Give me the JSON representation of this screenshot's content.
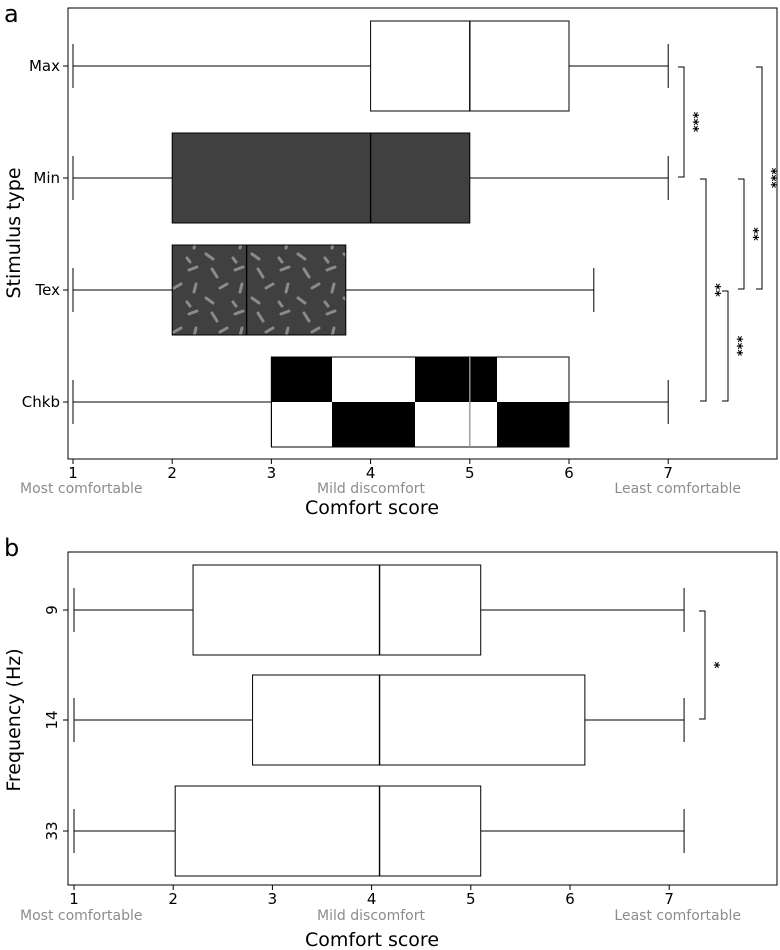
{
  "panel_a": {
    "letter": "a",
    "xlabel": "Comfort score",
    "ylabel": "Stimulus type",
    "x_ticks": [
      "1",
      "2",
      "3",
      "4",
      "5",
      "6",
      "7"
    ],
    "anchor_labels": [
      "Most comfortable",
      "Mild discomfort",
      "Least comfortable"
    ],
    "categories": [
      "Max",
      "Min",
      "Tex",
      "Chkb"
    ],
    "sig_marks": [
      "***",
      "***",
      "**",
      "**",
      "***"
    ]
  },
  "panel_b": {
    "letter": "b",
    "xlabel": "Comfort score",
    "ylabel": "Frequency (Hz)",
    "x_ticks": [
      "1",
      "2",
      "3",
      "4",
      "5",
      "6",
      "7"
    ],
    "anchor_labels": [
      "Most comfortable",
      "Mild discomfort",
      "Least comfortable"
    ],
    "categories": [
      "9",
      "14",
      "33"
    ],
    "sig_marks": [
      "*"
    ]
  },
  "chart_data": [
    {
      "type": "box",
      "orientation": "horizontal",
      "title": "a",
      "xlabel": "Comfort score",
      "ylabel": "Stimulus type",
      "xlim": [
        0.97,
        8.1
      ],
      "categories": [
        "Max",
        "Min",
        "Tex",
        "Chkb"
      ],
      "boxes": [
        {
          "category": "Max",
          "whisker_low": 1,
          "q1": 4,
          "median": 5,
          "q3": 6,
          "whisker_high": 7,
          "fill": "#ffffff",
          "pattern": "none"
        },
        {
          "category": "Min",
          "whisker_low": 1,
          "q1": 2,
          "median": 4,
          "q3": 5,
          "whisker_high": 7,
          "fill": "#404040",
          "pattern": "none"
        },
        {
          "category": "Tex",
          "whisker_low": 1,
          "q1": 2,
          "median": 2.75,
          "q3": 3.75,
          "whisker_high": 6.25,
          "fill": "#404040",
          "pattern": "texture"
        },
        {
          "category": "Chkb",
          "whisker_low": 1,
          "q1": 3,
          "median": 5,
          "q3": 6,
          "whisker_high": 7,
          "fill": "#ffffff",
          "pattern": "checkerboard"
        }
      ],
      "significance": [
        {
          "pair": [
            "Max",
            "Min"
          ],
          "label": "***"
        },
        {
          "pair": [
            "Max",
            "Tex"
          ],
          "label": "***"
        },
        {
          "pair": [
            "Min",
            "Tex"
          ],
          "label": "**"
        },
        {
          "pair": [
            "Min",
            "Chkb"
          ],
          "label": "**"
        },
        {
          "pair": [
            "Tex",
            "Chkb"
          ],
          "label": "***"
        }
      ],
      "grid": false
    },
    {
      "type": "box",
      "orientation": "horizontal",
      "title": "b",
      "xlabel": "Comfort score",
      "ylabel": "Frequency (Hz)",
      "xlim": [
        0.97,
        8.05
      ],
      "categories": [
        "9",
        "14",
        "33"
      ],
      "boxes": [
        {
          "category": "9",
          "whisker_low": 1,
          "q1": 2.2,
          "median": 4.08,
          "q3": 5.1,
          "whisker_high": 7.15
        },
        {
          "category": "14",
          "whisker_low": 1,
          "q1": 2.8,
          "median": 4.08,
          "q3": 6.15,
          "whisker_high": 7.15
        },
        {
          "category": "33",
          "whisker_low": 1,
          "q1": 2.02,
          "median": 4.08,
          "q3": 5.1,
          "whisker_high": 7.15
        }
      ],
      "significance": [
        {
          "pair": [
            "9",
            "14"
          ],
          "label": "*"
        }
      ],
      "grid": false
    }
  ]
}
